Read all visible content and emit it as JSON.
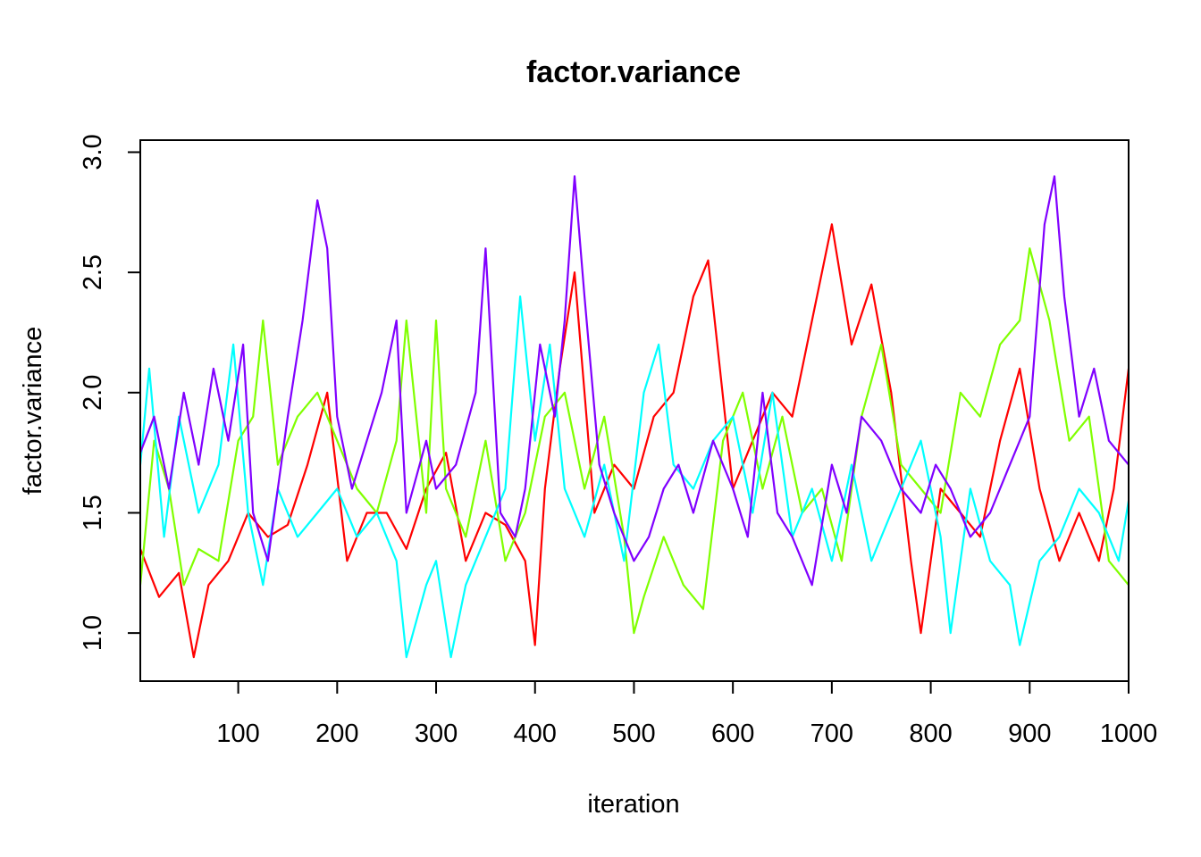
{
  "chart_data": {
    "type": "line",
    "title": "factor.variance",
    "xlabel": "iteration",
    "ylabel": "factor.variance",
    "xlim": [
      1,
      1000
    ],
    "ylim": [
      0.8,
      3.05
    ],
    "x_ticks": [
      100,
      200,
      300,
      400,
      500,
      600,
      700,
      800,
      900,
      1000
    ],
    "y_ticks": [
      1.0,
      1.5,
      2.0,
      2.5,
      3.0
    ],
    "y_tick_labels": [
      "1.0",
      "1.5",
      "2.0",
      "2.5",
      "3.0"
    ],
    "grid": false,
    "legend": "none",
    "series": [
      {
        "color": "#ff0000",
        "x": [
          1,
          20,
          40,
          55,
          70,
          90,
          110,
          130,
          150,
          170,
          190,
          210,
          230,
          250,
          270,
          290,
          310,
          330,
          350,
          370,
          390,
          400,
          410,
          425,
          440,
          460,
          480,
          500,
          520,
          540,
          560,
          575,
          600,
          620,
          640,
          660,
          680,
          700,
          720,
          740,
          760,
          780,
          790,
          810,
          830,
          850,
          870,
          890,
          910,
          930,
          950,
          970,
          985,
          1000
        ],
        "y": [
          1.35,
          1.15,
          1.25,
          0.9,
          1.2,
          1.3,
          1.5,
          1.4,
          1.45,
          1.7,
          2.0,
          1.3,
          1.5,
          1.5,
          1.35,
          1.6,
          1.75,
          1.3,
          1.5,
          1.45,
          1.3,
          0.95,
          1.6,
          2.1,
          2.5,
          1.5,
          1.7,
          1.6,
          1.9,
          2.0,
          2.4,
          2.55,
          1.6,
          1.8,
          2.0,
          1.9,
          2.3,
          2.7,
          2.2,
          2.45,
          2.0,
          1.3,
          1.0,
          1.6,
          1.5,
          1.4,
          1.8,
          2.1,
          1.6,
          1.3,
          1.5,
          1.3,
          1.6,
          2.1
        ]
      },
      {
        "color": "#80ff00",
        "x": [
          1,
          15,
          30,
          45,
          60,
          80,
          100,
          115,
          125,
          140,
          160,
          180,
          200,
          220,
          240,
          260,
          270,
          290,
          300,
          310,
          330,
          350,
          370,
          390,
          410,
          430,
          450,
          470,
          490,
          500,
          510,
          530,
          550,
          570,
          590,
          610,
          630,
          650,
          670,
          690,
          710,
          730,
          750,
          770,
          790,
          810,
          830,
          850,
          870,
          890,
          900,
          920,
          940,
          960,
          980,
          1000
        ],
        "y": [
          1.2,
          1.8,
          1.6,
          1.2,
          1.35,
          1.3,
          1.8,
          1.9,
          2.3,
          1.7,
          1.9,
          2.0,
          1.8,
          1.6,
          1.5,
          1.8,
          2.3,
          1.5,
          2.3,
          1.6,
          1.4,
          1.8,
          1.3,
          1.5,
          1.9,
          2.0,
          1.6,
          1.9,
          1.4,
          1.0,
          1.15,
          1.4,
          1.2,
          1.1,
          1.8,
          2.0,
          1.6,
          1.9,
          1.5,
          1.6,
          1.3,
          1.9,
          2.2,
          1.7,
          1.6,
          1.5,
          2.0,
          1.9,
          2.2,
          2.3,
          2.6,
          2.3,
          1.8,
          1.9,
          1.3,
          1.2
        ]
      },
      {
        "color": "#00ffff",
        "x": [
          1,
          10,
          25,
          40,
          60,
          80,
          95,
          110,
          125,
          140,
          160,
          180,
          200,
          220,
          240,
          260,
          270,
          290,
          300,
          315,
          330,
          350,
          370,
          385,
          400,
          415,
          430,
          450,
          470,
          490,
          510,
          525,
          540,
          560,
          580,
          600,
          620,
          640,
          660,
          680,
          700,
          720,
          740,
          760,
          770,
          790,
          810,
          820,
          840,
          860,
          880,
          890,
          910,
          930,
          950,
          970,
          990,
          1000
        ],
        "y": [
          1.7,
          2.1,
          1.4,
          1.9,
          1.5,
          1.7,
          2.2,
          1.5,
          1.2,
          1.6,
          1.4,
          1.5,
          1.6,
          1.4,
          1.5,
          1.3,
          0.9,
          1.2,
          1.3,
          0.9,
          1.2,
          1.4,
          1.6,
          2.4,
          1.8,
          2.2,
          1.6,
          1.4,
          1.7,
          1.3,
          2.0,
          2.2,
          1.7,
          1.6,
          1.8,
          1.9,
          1.5,
          2.0,
          1.4,
          1.6,
          1.3,
          1.7,
          1.3,
          1.5,
          1.6,
          1.8,
          1.4,
          1.0,
          1.6,
          1.3,
          1.2,
          0.95,
          1.3,
          1.4,
          1.6,
          1.5,
          1.3,
          1.55
        ]
      },
      {
        "color": "#8000ff",
        "x": [
          1,
          15,
          30,
          45,
          60,
          75,
          90,
          105,
          115,
          130,
          150,
          165,
          180,
          190,
          200,
          215,
          230,
          245,
          260,
          270,
          290,
          300,
          320,
          340,
          350,
          365,
          380,
          390,
          405,
          420,
          430,
          440,
          450,
          465,
          480,
          500,
          515,
          530,
          545,
          560,
          580,
          600,
          615,
          630,
          645,
          660,
          680,
          700,
          715,
          730,
          750,
          770,
          790,
          805,
          820,
          840,
          860,
          880,
          900,
          915,
          925,
          935,
          950,
          965,
          980,
          1000
        ],
        "y": [
          1.75,
          1.9,
          1.6,
          2.0,
          1.7,
          2.1,
          1.8,
          2.2,
          1.5,
          1.3,
          1.9,
          2.3,
          2.8,
          2.6,
          1.9,
          1.6,
          1.8,
          2.0,
          2.3,
          1.5,
          1.8,
          1.6,
          1.7,
          2.0,
          2.6,
          1.5,
          1.4,
          1.6,
          2.2,
          1.9,
          2.3,
          2.9,
          2.4,
          1.7,
          1.5,
          1.3,
          1.4,
          1.6,
          1.7,
          1.5,
          1.8,
          1.6,
          1.4,
          2.0,
          1.5,
          1.4,
          1.2,
          1.7,
          1.5,
          1.9,
          1.8,
          1.6,
          1.5,
          1.7,
          1.6,
          1.4,
          1.5,
          1.7,
          1.9,
          2.7,
          2.9,
          2.4,
          1.9,
          2.1,
          1.8,
          1.7
        ]
      }
    ]
  }
}
